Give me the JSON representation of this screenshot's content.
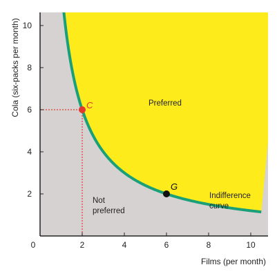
{
  "chart_data": {
    "type": "line",
    "xlabel": "Films (per month)",
    "ylabel": "Cola (six-packs per month)",
    "xlim": [
      0,
      10.5
    ],
    "ylim": [
      0,
      10.5
    ],
    "x_ticks": [
      "0",
      "2",
      "4",
      "6",
      "8",
      "10"
    ],
    "y_ticks": [
      "2",
      "4",
      "6",
      "8",
      "10"
    ],
    "grid": false,
    "series": [
      {
        "name": "Indifference curve",
        "k": 12,
        "x": [
          1.2,
          1.5,
          2,
          2.5,
          3,
          4,
          5,
          6,
          7,
          8,
          9,
          10,
          10.5
        ],
        "y": [
          10.0,
          8.0,
          6.0,
          4.8,
          4.0,
          3.0,
          2.4,
          2.0,
          1.71,
          1.5,
          1.33,
          1.2,
          1.14
        ]
      }
    ],
    "points": [
      {
        "label": "C",
        "x": 2,
        "y": 6,
        "color": "#e03a30"
      },
      {
        "label": "G",
        "x": 6,
        "y": 2,
        "color": "#111111"
      }
    ],
    "regions": {
      "preferred": "Preferred",
      "not_preferred_line1": "Not",
      "not_preferred_line2": "preferred",
      "curve_line1": "Indifference",
      "curve_line2": "curve"
    },
    "highlight_tick_x": "2",
    "highlight_tick_y": "6",
    "colors": {
      "preferred_fill": "#fdeb1b",
      "not_preferred_fill": "#d6d2d2",
      "curve": "#1aa079",
      "guide": "#e03a30",
      "axis": "#222222",
      "highlight_text": "#d13a30"
    }
  }
}
